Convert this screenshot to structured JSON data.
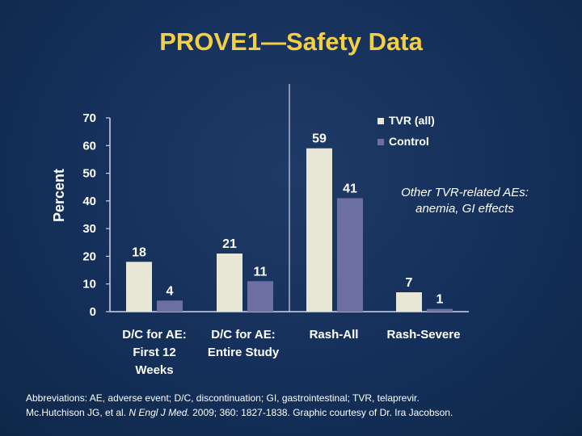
{
  "title": "PROVE1—Safety Data",
  "chart_data": {
    "type": "bar",
    "ylabel": "Percent",
    "ylim": [
      0,
      70
    ],
    "yticks": [
      "0",
      "10",
      "20",
      "30",
      "40",
      "50",
      "60",
      "70"
    ],
    "categories": [
      [
        "D/C for AE:",
        "First 12",
        "Weeks"
      ],
      [
        "D/C for AE:",
        "Entire Study"
      ],
      [
        "Rash-All"
      ],
      [
        "Rash-Severe"
      ]
    ],
    "series": [
      {
        "name": "TVR (all)",
        "color": "#e8e6d6",
        "values": [
          18,
          21,
          59,
          7
        ]
      },
      {
        "name": "Control",
        "color": "#6b6fa3",
        "values": [
          4,
          11,
          41,
          1
        ]
      }
    ],
    "legend": "top-right",
    "grid": false
  },
  "annotation": [
    "Other TVR-related AEs:",
    "anemia, GI effects"
  ],
  "footer": {
    "abbreviations": "Abbreviations: AE, adverse event; D/C, discontinuation; GI, gastrointestinal; TVR, telaprevir.",
    "citation_authors": "Mc.Hutchison JG, et al. ",
    "citation_journal": "N Engl J Med.",
    "citation_rest": " 2009; 360: 1827-1838. Graphic courtesy of Dr. Ira Jacobson."
  }
}
